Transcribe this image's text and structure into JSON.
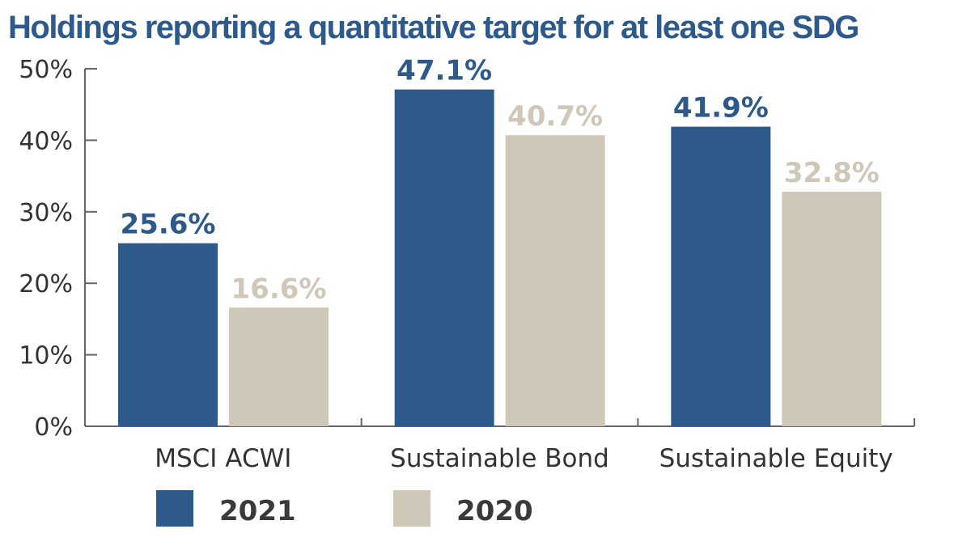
{
  "chart_data": {
    "type": "bar",
    "title": "Holdings reporting a quantitative target for at least one SDG",
    "categories": [
      "MSCI ACWI",
      "Sustainable Bond",
      "Sustainable Equity"
    ],
    "series": [
      {
        "name": "2021",
        "values": [
          25.6,
          47.1,
          41.9
        ],
        "labels": [
          "25.6%",
          "47.1%",
          "41.9%"
        ],
        "color": "#2e5a8b"
      },
      {
        "name": "2020",
        "values": [
          16.6,
          40.7,
          32.8
        ],
        "labels": [
          "16.6%",
          "40.7%",
          "32.8%"
        ],
        "color": "#cfc7b8"
      }
    ],
    "ylim": [
      0,
      50
    ],
    "yticks": [
      0,
      10,
      20,
      30,
      40,
      50
    ],
    "ytick_labels": [
      "0%",
      "10%",
      "20%",
      "30%",
      "40%",
      "50%"
    ],
    "xlabel": "",
    "ylabel": "",
    "grid": false,
    "legend_position": "bottom",
    "title_color": "#2e5a8b",
    "axis_color": "#666666"
  }
}
